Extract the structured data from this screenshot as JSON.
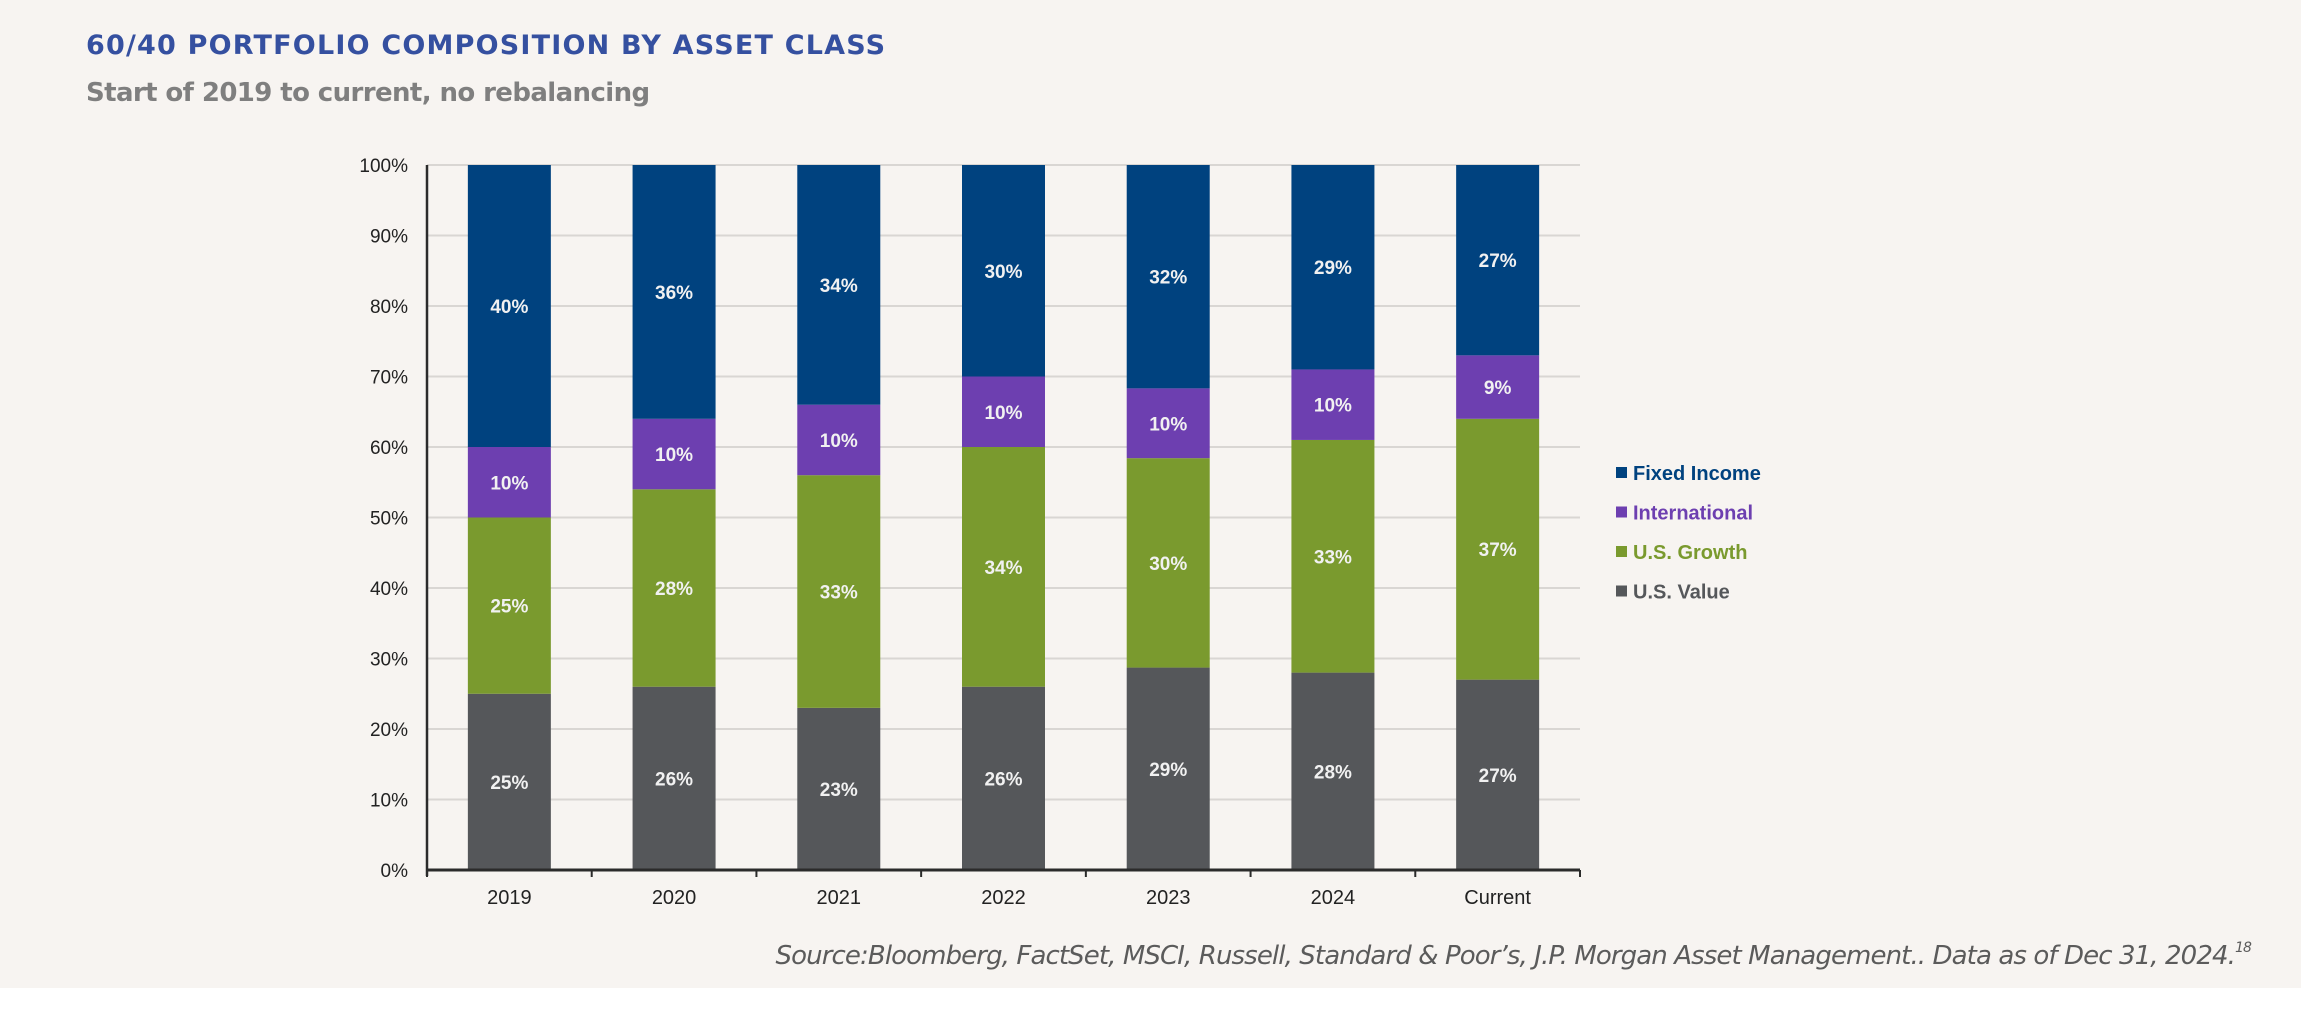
{
  "header": {
    "title": "60/40 PORTFOLIO COMPOSITION BY ASSET CLASS",
    "subtitle": "Start of 2019 to current, no rebalancing"
  },
  "footer": {
    "source": "Source:Bloomberg, FactSet, MSCI, Russell, Standard & Poor’s, J.P. Morgan Asset Management.. Data as of Dec 31, 2024.",
    "footnote_ref": "18"
  },
  "colors": {
    "background": "#f7f4f1",
    "title": "#3550a0",
    "subtitle": "#7f7f7f",
    "fixed_income": "#00427f",
    "international": "#6d3fb0",
    "us_growth": "#7a9a2e",
    "us_value": "#55575a"
  },
  "chart_data": {
    "type": "bar",
    "stacked": true,
    "title": "60/40 PORTFOLIO COMPOSITION BY ASSET CLASS",
    "subtitle": "Start of 2019 to current, no rebalancing",
    "xlabel": "",
    "ylabel": "",
    "categories": [
      "2019",
      "2020",
      "2021",
      "2022",
      "2023",
      "2024",
      "Current"
    ],
    "ylim": [
      0,
      100
    ],
    "yticks": [
      0,
      10,
      20,
      30,
      40,
      50,
      60,
      70,
      80,
      90,
      100
    ],
    "ytick_labels": [
      "0%",
      "10%",
      "20%",
      "30%",
      "40%",
      "50%",
      "60%",
      "70%",
      "80%",
      "90%",
      "100%"
    ],
    "grid": true,
    "legend_position": "right",
    "series": [
      {
        "name": "U.S. Value",
        "color": "#55575a",
        "values": [
          25,
          26,
          23,
          26,
          29,
          28,
          27
        ],
        "labels": [
          "25%",
          "26%",
          "23%",
          "26%",
          "29%",
          "28%",
          "27%"
        ]
      },
      {
        "name": "U.S. Growth",
        "color": "#7a9a2e",
        "values": [
          25,
          28,
          33,
          34,
          30,
          33,
          37
        ],
        "labels": [
          "25%",
          "28%",
          "33%",
          "34%",
          "30%",
          "33%",
          "37%"
        ]
      },
      {
        "name": "International",
        "color": "#6d3fb0",
        "values": [
          10,
          10,
          10,
          10,
          10,
          10,
          9
        ],
        "labels": [
          "10%",
          "10%",
          "10%",
          "10%",
          "10%",
          "10%",
          "9%"
        ]
      },
      {
        "name": "Fixed Income",
        "color": "#00427f",
        "values": [
          40,
          36,
          34,
          30,
          32,
          29,
          27
        ],
        "labels": [
          "40%",
          "36%",
          "34%",
          "30%",
          "32%",
          "29%",
          "27%"
        ]
      }
    ],
    "legend_order": [
      "Fixed Income",
      "International",
      "U.S. Growth",
      "U.S. Value"
    ]
  }
}
